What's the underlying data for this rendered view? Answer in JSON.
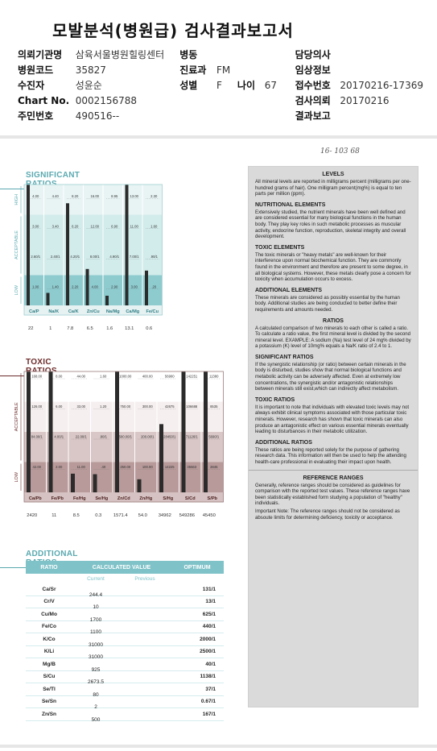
{
  "report": {
    "title": "모발분석(병원급) 검사결과보고서",
    "handwritten_note": "16- 103 68"
  },
  "header": {
    "rows": [
      {
        "k1": "의뢰기관명",
        "v1": "삼육서울병원힐링센터",
        "k2": "병동",
        "v2": "",
        "k3": "담당의사",
        "v3": ""
      },
      {
        "k1": "병원코드",
        "v1": "35827",
        "k2": "진료과",
        "v2": "FM",
        "k3": "임상정보",
        "v3": ""
      },
      {
        "k1": "수진자",
        "v1": "성윤순",
        "k2": "성별",
        "v2": "F",
        "k2b": "나이",
        "v2b": "67",
        "k3": "접수번호",
        "v3": "20170216-17369"
      },
      {
        "k1": "Chart No.",
        "v1": "0002156788",
        "k2": "",
        "v2": "",
        "k3": "검사의뢰",
        "v3": "20170216"
      },
      {
        "k1": "주민번호",
        "v1": "490516--",
        "k2": "",
        "v2": "",
        "k3": "결과보고",
        "v3": ""
      }
    ]
  },
  "significant": {
    "title": "SIGNIFICANT RATIOS",
    "zones": [
      "HIGH",
      "ACCEPTABLE",
      "LOW"
    ],
    "columns": [
      "Ca/P",
      "Na/K",
      "Ca/K",
      "Zn/Cu",
      "Na/Mg",
      "Ca/Mg",
      "Fe/Cu"
    ],
    "ticks": [
      [
        "4.00",
        "3.00",
        "2.60/1",
        "1.00"
      ],
      [
        "4.40",
        "3.40",
        "2.40/1",
        "1.40"
      ],
      [
        "8.20",
        "6.20",
        "4.20/1",
        "2.20"
      ],
      [
        "16.00",
        "12.00",
        "8.00/1",
        "4.00"
      ],
      [
        "8.95",
        "6.90",
        "4.90/1",
        "2.90"
      ],
      [
        "13.00",
        "11.00",
        "7.00/1",
        "3.00"
      ],
      [
        "2.30",
        "1.60",
        ".90/1",
        ".20"
      ]
    ],
    "values": [
      "22",
      "1",
      "7.8",
      "6.5",
      "1.6",
      "13.1",
      "0.6"
    ]
  },
  "toxic": {
    "title": "TOXIC RATIOS",
    "zones": [
      "ACCEPTABLE",
      "LOW"
    ],
    "columns": [
      "Ca/Pb",
      "Fe/Pb",
      "Fe/Hg",
      "Se/Hg",
      "Zn/Cd",
      "Zn/Hg",
      "S/Hg",
      "S/Cd",
      "S/Pb"
    ],
    "ticks": [
      [
        "168.00",
        "126.00",
        "84.00/1",
        "42.00"
      ],
      [
        "8.00",
        "6.00",
        "4.00/1",
        "2.00"
      ],
      [
        "44.00",
        "33.00",
        "22.00/1",
        "11.00"
      ],
      [
        "1.60",
        "1.20",
        ".80/1",
        ".40"
      ],
      [
        "1000.00",
        "750.00",
        "500.00/1",
        "250.00"
      ],
      [
        "400.00",
        "300.00",
        "200.00/1",
        "100.00"
      ],
      [
        "56900",
        "42675",
        "28450/1",
        "14225"
      ],
      [
        "142251",
        "106688",
        "71126/1",
        "35563"
      ],
      [
        "11380",
        "8535",
        "5690/1",
        "2845"
      ]
    ],
    "values": [
      "2420",
      "11",
      "8.5",
      "0.3",
      "1571.4",
      "54.0",
      "34962",
      "549286",
      "45450"
    ]
  },
  "additional": {
    "title": "ADDITIONAL RATIOS",
    "headers": [
      "RATIO",
      "CALCULATED VALUE",
      "OPTIMUM"
    ],
    "subheaders": [
      "Current",
      "Previous"
    ],
    "rows": [
      {
        "ratio": "Ca/Sr",
        "current": "244.4",
        "optimum": "131/1"
      },
      {
        "ratio": "Cr/V",
        "current": "10",
        "optimum": "13/1"
      },
      {
        "ratio": "Cu/Mo",
        "current": "1700",
        "optimum": "625/1"
      },
      {
        "ratio": "Fe/Co",
        "current": "1100",
        "optimum": "440/1"
      },
      {
        "ratio": "K/Co",
        "current": "31000",
        "optimum": "2000/1"
      },
      {
        "ratio": "K/Li",
        "current": "31000",
        "optimum": "2500/1"
      },
      {
        "ratio": "Mg/B",
        "current": "925",
        "optimum": "40/1"
      },
      {
        "ratio": "S/Cu",
        "current": "2673.5",
        "optimum": "1138/1"
      },
      {
        "ratio": "Se/Tl",
        "current": "80",
        "optimum": "37/1"
      },
      {
        "ratio": "Se/Sn",
        "current": "2",
        "optimum": "0.67/1"
      },
      {
        "ratio": "Zn/Sn",
        "current": "500",
        "optimum": "167/1"
      }
    ]
  },
  "legend": {
    "sections": [
      {
        "h": "LEVELS",
        "p": "All mineral levels are reported in milligrams percent (milligrams per one-hundred grams of hair). One milligram percent(mg%) is equal to ten parts per million (ppm)."
      },
      {
        "h": "NUTRITIONAL ELEMENTS",
        "p": "Extensively studied, the nutrient minerals have been well defined and are considered essential for many biological functions in the human body. They play key roles in such metabolic processes as muscular activity, endocrine function, reproduction, skeletal integrity and overall development."
      },
      {
        "h": "TOXIC ELEMENTS",
        "p": "The toxic minerals or \"heavy metals\" are well-known for their interference upon normal biochemical function. They are commonly found in the environment and therefore are present to some degree, in all biological systems. However, these metals clearly pose a concern for toxicity when accumulation occurs to excess."
      },
      {
        "h": "ADDITIONAL ELEMENTS",
        "p": "These minerals are considered as possibly essential by the human body. Additional studies are being conducted to better define their requirements and amounts needed."
      },
      {
        "h": "RATIOS",
        "p": "A calculated comparison of two minerals to each other is called a ratio. To calculate a ratio value, the first mineral level is divided by the second mineral level. EXAMPLE: A sodium (Na) test level of 24 mg% divided by a potassium (K) level of 10mg% equals a Na/K ratio of 2.4 to 1."
      },
      {
        "h": "SIGNIFICANT RATIOS",
        "p": "If the synergistic relationship (or ratio) between certain minerals in the body is disturbed, studies show that normal biological functions and metabolic activity can be adversely affected. Even at extremely low concentrations, the synergistic and/or antagonistic relationships between minerals still exist,which can indirectly affect metabolism."
      },
      {
        "h": "TOXIC RATIOS",
        "p": "It is important to note that individuals with elevated toxic levels may not always exhibit clinical symptoms associated with those particular toxic minerals. However, research has shown that toxic minerals can also produce an antagonistic effect on various essential minerals eventually leading to disturbances in their metabolic utilization."
      },
      {
        "h": "ADDITIONAL RATIOS",
        "p": "These ratios are being reported solely for the purpose of gathering research data. This information will then be used to help the attending health-care professional in evaluating their impact upon health."
      },
      {
        "h": "REFERENCE RANGES",
        "p": "Generally, reference ranges should be considered as guidelines for comparison with the reported test values. These reference ranges have been statistically established form studying a population of \"healthy\" individuals."
      },
      {
        "h": "",
        "p": "Important Note: The reference ranges should not be considered as absoute limits for determining deficiency, toxicity or acceptance."
      }
    ]
  },
  "colors": {
    "teal": "#5aa9b0",
    "teal_light": "#d9eeee",
    "teal_mid": "#9cd0d3",
    "teal_dark": "#6db8bd",
    "maroon": "#6b2a2a",
    "mauve": "#b89a9a",
    "mauve_dark": "#8b6666",
    "bar": "#2b2b2b"
  }
}
